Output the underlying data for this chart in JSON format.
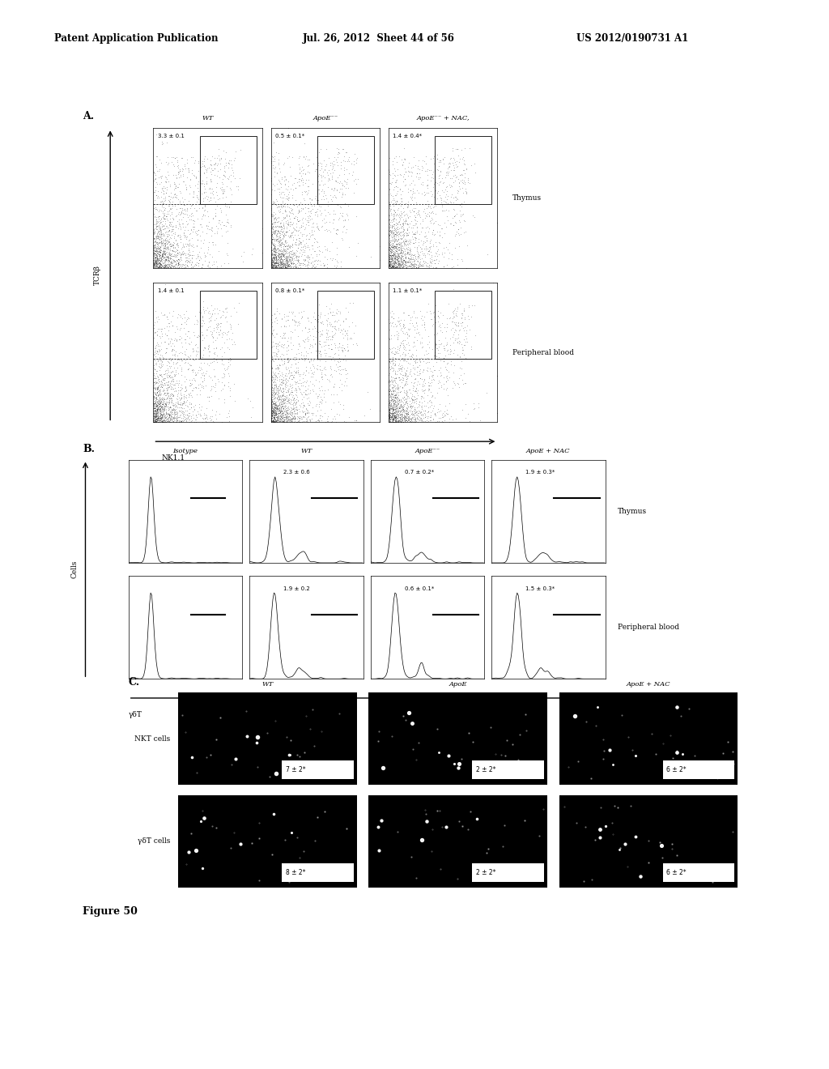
{
  "header_left": "Patent Application Publication",
  "header_mid": "Jul. 26, 2012  Sheet 44 of 56",
  "header_right": "US 2012/0190731 A1",
  "figure_label": "Figure 50",
  "section_A_label": "A.",
  "section_B_label": "B.",
  "section_C_label": "C.",
  "A_col_labels": [
    "WT",
    "ApoE⁻⁻",
    "ApoE⁻⁻ + NAC,"
  ],
  "A_row_labels": [
    "Thymus",
    "Peripheral blood"
  ],
  "A_ylabel": "TCRβ",
  "A_xlabel": "NK1.1",
  "A_values": [
    [
      "3.3 ± 0.1",
      "0.5 ± 0.1*",
      "1.4 ± 0.4*"
    ],
    [
      "1.4 ± 0.1",
      "0.8 ± 0.1*",
      "1.1 ± 0.1*"
    ]
  ],
  "B_col_labels": [
    "Isotype",
    "WT",
    "ApoE⁻⁻",
    "ApoE + NAC"
  ],
  "B_row_labels": [
    "Thymus",
    "Peripheral blood"
  ],
  "B_ylabel": "Cells",
  "B_xlabel": "γδT",
  "B_values": [
    [
      "",
      "2.3 ± 0.6",
      "0.7 ± 0.2*",
      "1.9 ± 0.3*"
    ],
    [
      "",
      "1.9 ± 0.2",
      "0.6 ± 0.1*",
      "1.5 ± 0.3*"
    ]
  ],
  "C_col_labels": [
    "WT",
    "ApoE",
    "ApoE + NAC"
  ],
  "C_row_labels": [
    "NKT cells",
    "γδT cells"
  ],
  "C_values": [
    [
      "7 ± 2*",
      "2 ± 2*",
      "6 ± 2*"
    ],
    [
      "8 ± 2*",
      "2 ± 2*",
      "6 ± 2*"
    ]
  ],
  "bg_color": "#ffffff"
}
